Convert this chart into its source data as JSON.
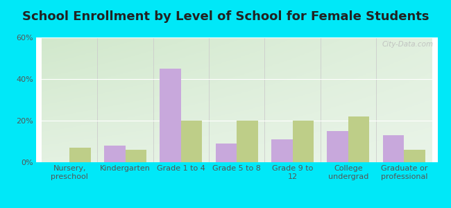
{
  "title": "School Enrollment by Level of School for Female Students",
  "categories": [
    "Nursery,\npreschool",
    "Kindergarten",
    "Grade 1 to 4",
    "Grade 5 to 8",
    "Grade 9 to\n12",
    "College\nundergrad",
    "Graduate or\nprofessional"
  ],
  "adair_values": [
    0,
    8,
    45,
    9,
    11,
    15,
    13
  ],
  "iowa_values": [
    7,
    6,
    20,
    20,
    20,
    22,
    6
  ],
  "adair_color": "#c8a8dc",
  "iowa_color": "#bece88",
  "ylim": [
    0,
    60
  ],
  "yticks": [
    0,
    20,
    40,
    60
  ],
  "ytick_labels": [
    "0%",
    "20%",
    "40%",
    "60%"
  ],
  "background_outer": "#00e8f8",
  "title_fontsize": 13,
  "tick_fontsize": 8,
  "legend_fontsize": 9.5,
  "bar_width": 0.38,
  "watermark": "City-Data.com"
}
